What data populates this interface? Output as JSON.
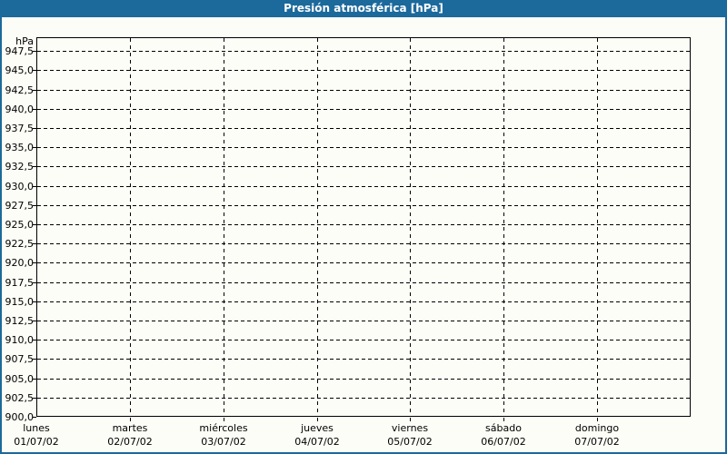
{
  "window": {
    "title": "Presión atmosférica [hPa]"
  },
  "colors": {
    "frame_blue": "#1c699c",
    "panel_background": "#fbfdf6",
    "grid_line": "#000000",
    "title_text": "#ffffff",
    "label_text": "#000000"
  },
  "chart_data": {
    "type": "line",
    "title": "Presión atmosférica [hPa]",
    "grid": true,
    "legend_position": "none",
    "series": [],
    "y_axis": {
      "unit": "hPa",
      "min": 900,
      "max_view": 949.3,
      "step": 2.5,
      "ticks": [
        {
          "value": 947.5,
          "label": "947,5"
        },
        {
          "value": 945.0,
          "label": "945,0"
        },
        {
          "value": 942.5,
          "label": "942,5"
        },
        {
          "value": 940.0,
          "label": "940,0"
        },
        {
          "value": 937.5,
          "label": "937,5"
        },
        {
          "value": 935.0,
          "label": "935,0"
        },
        {
          "value": 932.5,
          "label": "932,5"
        },
        {
          "value": 930.0,
          "label": "930,0"
        },
        {
          "value": 927.5,
          "label": "927,5"
        },
        {
          "value": 925.0,
          "label": "925,0"
        },
        {
          "value": 922.5,
          "label": "922,5"
        },
        {
          "value": 920.0,
          "label": "920,0"
        },
        {
          "value": 917.5,
          "label": "917,5"
        },
        {
          "value": 915.0,
          "label": "915,0"
        },
        {
          "value": 912.5,
          "label": "912,5"
        },
        {
          "value": 910.0,
          "label": "910,0"
        },
        {
          "value": 907.5,
          "label": "907,5"
        },
        {
          "value": 905.0,
          "label": "905,0"
        },
        {
          "value": 902.5,
          "label": "902,5"
        },
        {
          "value": 900.0,
          "label": "900,0"
        }
      ]
    },
    "x_axis": {
      "days": [
        {
          "name": "lunes",
          "date": "01/07/02"
        },
        {
          "name": "martes",
          "date": "02/07/02"
        },
        {
          "name": "miércoles",
          "date": "03/07/02"
        },
        {
          "name": "jueves",
          "date": "04/07/02"
        },
        {
          "name": "viernes",
          "date": "05/07/02"
        },
        {
          "name": "sábado",
          "date": "06/07/02"
        },
        {
          "name": "domingo",
          "date": "07/07/02"
        }
      ]
    }
  }
}
